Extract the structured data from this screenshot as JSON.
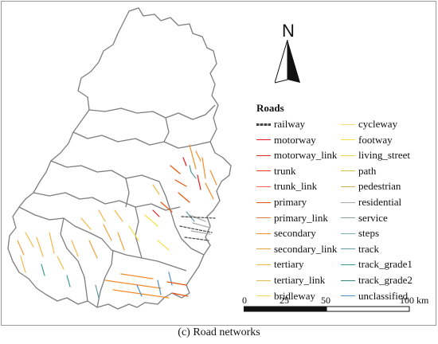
{
  "legend": {
    "title": "Roads",
    "left_items": [
      {
        "label": "railway",
        "color": "#444444",
        "kind": "railway"
      },
      {
        "label": "motorway",
        "color": "#e31a1c"
      },
      {
        "label": "motorway_link",
        "color": "#d7301f"
      },
      {
        "label": "trunk",
        "color": "#f03b20"
      },
      {
        "label": "trunk_link",
        "color": "#fb6a4a"
      },
      {
        "label": "primary",
        "color": "#e6550d"
      },
      {
        "label": "primary_link",
        "color": "#d97c3a"
      },
      {
        "label": "secondary",
        "color": "#f28e2b"
      },
      {
        "label": "secondary_link",
        "color": "#e8a33d"
      },
      {
        "label": "tertiary",
        "color": "#f1b847"
      },
      {
        "label": "tertiary_link",
        "color": "#e6b94f"
      },
      {
        "label": "bridleway",
        "color": "#f7d75a"
      }
    ],
    "right_items": [
      {
        "label": "cycleway",
        "color": "#f6e27a"
      },
      {
        "label": "footway",
        "color": "#f4e04d"
      },
      {
        "label": "living_street",
        "color": "#e8d44d"
      },
      {
        "label": "path",
        "color": "#d9c24a"
      },
      {
        "label": "pedestrian",
        "color": "#c9b458"
      },
      {
        "label": "residential",
        "color": "#a9a9a9"
      },
      {
        "label": "service",
        "color": "#8ca0a0"
      },
      {
        "label": "steps",
        "color": "#7fb3b3"
      },
      {
        "label": "track",
        "color": "#5f9ea0"
      },
      {
        "label": "track_grade1",
        "color": "#3c9b8f"
      },
      {
        "label": "track_grade2",
        "color": "#2e8b7a"
      },
      {
        "label": "unclassified",
        "color": "#4a90c8"
      }
    ]
  },
  "north_arrow": {
    "label": "N"
  },
  "scale_bar": {
    "tick_labels": [
      "0",
      "25",
      "50",
      "100 km"
    ]
  },
  "caption": {
    "prefix": "(c)",
    "text": " Road networks"
  },
  "colors": {
    "boundary": "#7d7d7d",
    "city_border": "#888888"
  }
}
